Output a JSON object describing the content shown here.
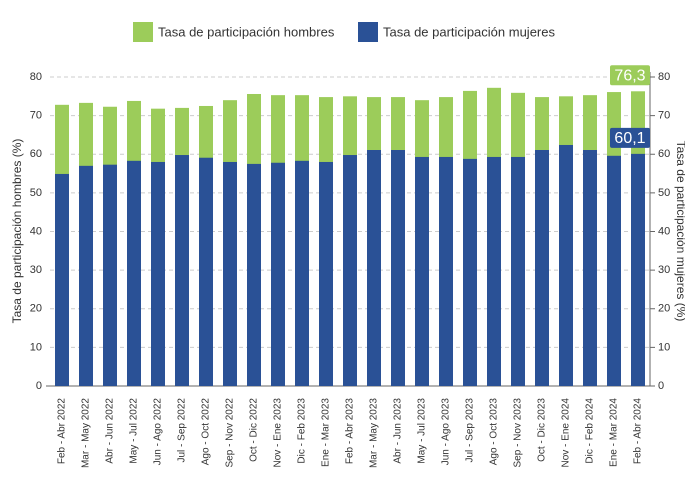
{
  "chart_data": {
    "type": "bar",
    "categories": [
      "Feb - Abr 2022",
      "Mar - May 2022",
      "Abr - Jun 2022",
      "May - Jul 2022",
      "Jun - Ago 2022",
      "Jul - Sep 2022",
      "Ago - Oct 2022",
      "Sep - Nov 2022",
      "Oct - Dic 2022",
      "Nov - Ene 2023",
      "Dic - Feb 2023",
      "Ene - Mar 2023",
      "Feb - Abr 2023",
      "Mar - May 2023",
      "Abr - Jun 2023",
      "May - Jul 2023",
      "Jun - Ago 2023",
      "Jul - Sep 2023",
      "Ago - Oct 2023",
      "Sep - Nov 2023",
      "Oct - Dic 2023",
      "Nov - Ene 2024",
      "Dic - Feb 2024",
      "Ene - Mar 2024",
      "Feb - Abr 2024"
    ],
    "series": [
      {
        "name": "Tasa de participación hombres",
        "color": "#9ccc5a",
        "values": [
          72.8,
          73.3,
          72.3,
          73.8,
          71.8,
          72.0,
          72.5,
          74.0,
          75.6,
          75.3,
          75.3,
          74.8,
          75.0,
          74.8,
          74.8,
          74.0,
          74.8,
          76.4,
          77.2,
          75.9,
          74.8,
          75.0,
          75.3,
          76.1,
          76.3
        ],
        "value_labels": [
          null,
          null,
          null,
          null,
          null,
          null,
          null,
          null,
          null,
          null,
          null,
          null,
          null,
          null,
          null,
          null,
          null,
          null,
          null,
          null,
          null,
          null,
          null,
          null,
          "76,3"
        ]
      },
      {
        "name": "Tasa de participación mujeres",
        "color": "#2a5196",
        "axis": "y2",
        "values": [
          54.9,
          57.0,
          57.3,
          58.3,
          58.0,
          59.8,
          59.1,
          58.0,
          57.5,
          57.8,
          58.3,
          58.0,
          59.8,
          61.1,
          61.1,
          59.3,
          59.3,
          58.8,
          59.3,
          59.3,
          61.1,
          62.4,
          61.1,
          59.6,
          60.1
        ],
        "value_labels": [
          null,
          null,
          null,
          null,
          null,
          null,
          null,
          null,
          null,
          null,
          null,
          null,
          null,
          null,
          null,
          null,
          null,
          null,
          null,
          null,
          null,
          null,
          null,
          null,
          "60,1"
        ]
      }
    ],
    "ylabel": "Tasa de participación hombres (%)",
    "y2label": "Tasa de participación mujeres (%)",
    "ylim": [
      0,
      80
    ],
    "yticks": [
      0,
      10,
      20,
      30,
      40,
      50,
      60,
      70,
      80
    ],
    "y2lim": [
      0,
      80
    ],
    "y2ticks": [
      0,
      10,
      20,
      30,
      40,
      50,
      60,
      70,
      80
    ],
    "grid": true,
    "legend": "top"
  }
}
